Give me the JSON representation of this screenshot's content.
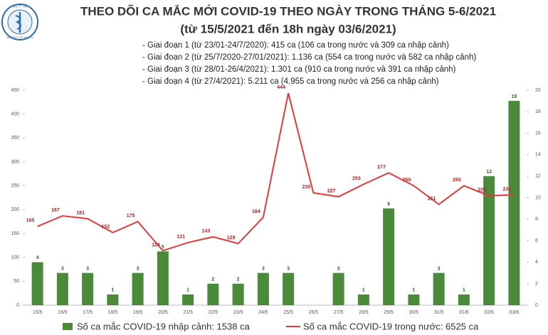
{
  "logo": {
    "top": "BỘ Y TẾ",
    "bottom": "MINISTRY OF HEALTH"
  },
  "chart_data": {
    "type": "combo",
    "title": "THEO DÕI CA MẮC MỚI COVID-19 THEO NGÀY TRONG THÁNG 5-6/2021",
    "subtitle": "(từ 15/5/2021 đến 18h ngày 03/6/2021)",
    "notes": [
      "- Giai đoạn 1 (từ 23/01-24/7/2020): 415 ca (106 ca trong nước và 309 ca nhập cảnh)",
      "- Giai đoạn 2 (từ 25/7/2020-27/01/2021): 1.136 ca (554 ca trong nước và 582 ca nhập cảnh)",
      "- Giai đoạn 3 (từ 28/01-26/4/2021): 1.301 ca (910 ca trong nước và 391 ca nhập cảnh)",
      "- Giai đoạn 4 (từ 27/4/2021): 5.211 ca (4.955 ca trong nước và 256 ca nhập cảnh)"
    ],
    "categories": [
      "15/5",
      "16/5",
      "17/5",
      "18/5",
      "19/5",
      "20/5",
      "21/5",
      "22/5",
      "23/5",
      "24/5",
      "25/5",
      "26/5",
      "27/5",
      "28/5",
      "29/5",
      "30/5",
      "31/5",
      "01/6",
      "02/6",
      "03/6"
    ],
    "series": [
      {
        "name": "Số ca mắc COVID-19 nhập cảnh: 1538 ca",
        "mark": "bar",
        "axis": "y2",
        "color": "#4b8a3b",
        "values": [
          4,
          3,
          3,
          1,
          3,
          5,
          1,
          2,
          2,
          3,
          3,
          null,
          3,
          1,
          9,
          1,
          3,
          1,
          12,
          19
        ]
      },
      {
        "name": "Số ca mắc COVID-19 trong nước: 6525 ca",
        "mark": "line",
        "color": "#e03a3a",
        "values": [
          165,
          187,
          181,
          152,
          175,
          114,
          131,
          143,
          129,
          184,
          444,
          235,
          227,
          253,
          277,
          250,
          211,
          250,
          229,
          231
        ]
      }
    ],
    "ylim": [
      0,
      450
    ],
    "yticks": [
      0,
      50,
      100,
      150,
      200,
      250,
      300,
      350,
      400,
      450
    ],
    "y2lim": [
      0,
      20
    ],
    "y2ticks": [
      0,
      2,
      4,
      6,
      8,
      10,
      12,
      14,
      16,
      18,
      20
    ]
  }
}
